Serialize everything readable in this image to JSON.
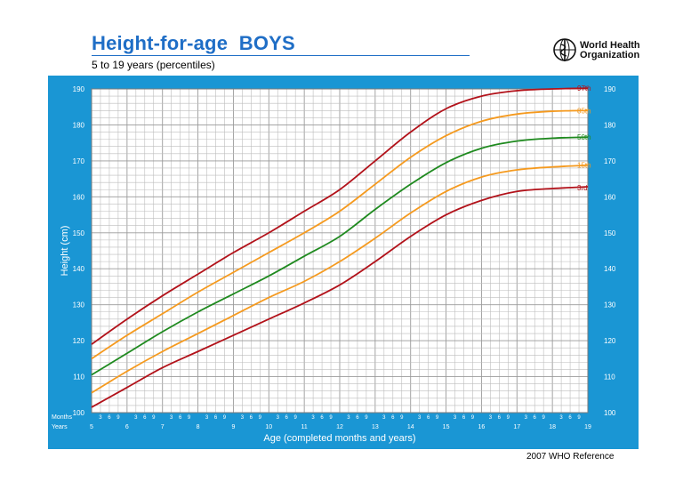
{
  "header": {
    "title": "Height-for-age  BOYS",
    "subtitle": "5 to 19 years (percentiles)",
    "org_line1": "World Health",
    "org_line2": "Organization"
  },
  "footer": {
    "reference": "2007 WHO Reference"
  },
  "colors": {
    "frame": "#1a96d4",
    "plot_bg": "#ffffff",
    "grid": "#bdbdbd",
    "p97": "#b2121a",
    "p85": "#f59a1f",
    "p50": "#1f8a1f",
    "p15": "#f59a1f",
    "p3": "#b2121a",
    "title": "#1f6ec6"
  },
  "chart_data": {
    "type": "line",
    "title": "Height-for-age  BOYS",
    "subtitle": "5 to 19 years (percentiles)",
    "xlabel": "Age (completed months and years)",
    "ylabel": "Height (cm)",
    "xlim": [
      5,
      19
    ],
    "ylim": [
      100,
      190
    ],
    "y_ticks": [
      100,
      110,
      120,
      130,
      140,
      150,
      160,
      170,
      180,
      190
    ],
    "x_row_labels": {
      "months": "Months",
      "years": "Years"
    },
    "year_ticks": [
      "5",
      "6",
      "7",
      "8",
      "9",
      "10",
      "11",
      "12",
      "13",
      "14",
      "15",
      "16",
      "17",
      "18",
      "19"
    ],
    "month_ticks": [
      "3",
      "6",
      "9"
    ],
    "grid": true,
    "x": [
      5,
      6,
      7,
      8,
      9,
      10,
      11,
      12,
      13,
      14,
      15,
      16,
      17,
      18,
      19
    ],
    "series": [
      {
        "name": "97th",
        "color_key": "p97",
        "values": [
          119,
          126,
          132.5,
          138.5,
          144.5,
          150,
          156,
          162,
          170,
          178,
          184.5,
          188,
          189.5,
          190,
          190.2
        ]
      },
      {
        "name": "85th",
        "color_key": "p85",
        "values": [
          115,
          121.5,
          127.5,
          133.5,
          139,
          144.5,
          150,
          156,
          163.5,
          171,
          177,
          181,
          183,
          183.8,
          184
        ]
      },
      {
        "name": "50th",
        "color_key": "p50",
        "values": [
          110.5,
          116.5,
          122.5,
          128,
          133,
          138,
          143.5,
          149,
          156.5,
          163.5,
          169.5,
          173.5,
          175.5,
          176.3,
          176.6
        ]
      },
      {
        "name": "15th",
        "color_key": "p15",
        "values": [
          105.5,
          111.5,
          117,
          122,
          127,
          132,
          136.5,
          142,
          148.5,
          155.5,
          161.5,
          165.5,
          167.5,
          168.3,
          168.8
        ]
      },
      {
        "name": "3rd",
        "color_key": "p3",
        "values": [
          101.5,
          107,
          112.5,
          117,
          121.5,
          126,
          130.5,
          135.5,
          142,
          149,
          155,
          159,
          161.5,
          162.3,
          162.8
        ]
      }
    ]
  }
}
